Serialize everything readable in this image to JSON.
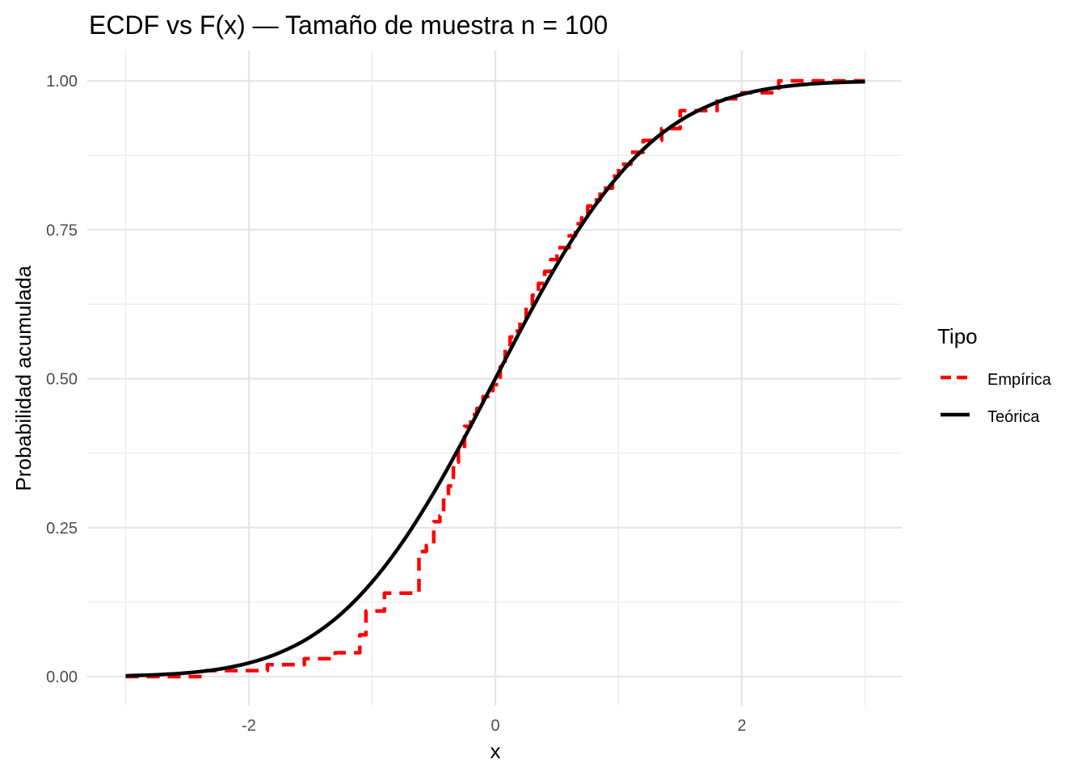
{
  "chart_data": {
    "type": "line",
    "title": "ECDF vs F(x) — Tamaño de muestra n = 100",
    "xlabel": "x",
    "ylabel": "Probabilidad acumulada",
    "xlim": [
      -3,
      3
    ],
    "ylim": [
      0,
      1
    ],
    "x_ticks": [
      -2,
      0,
      2
    ],
    "x_tick_labels": [
      "-2",
      "0",
      "2"
    ],
    "y_ticks": [
      0,
      0.25,
      0.5,
      0.75,
      1
    ],
    "y_tick_labels": [
      "0.00",
      "0.25",
      "0.50",
      "0.75",
      "1.00"
    ],
    "grid": true,
    "legend": {
      "title": "Tipo",
      "position": "right"
    },
    "series": [
      {
        "name": "Empírica",
        "color": "#ff0000",
        "style": "dashed",
        "x": [
          -3.0,
          -2.35,
          -2.0,
          -1.85,
          -1.55,
          -1.3,
          -1.1,
          -1.05,
          -0.9,
          -0.72,
          -0.62,
          -0.56,
          -0.5,
          -0.45,
          -0.42,
          -0.38,
          -0.34,
          -0.3,
          -0.25,
          -0.2,
          -0.15,
          -0.1,
          -0.06,
          -0.02,
          0.0,
          0.04,
          0.08,
          0.12,
          0.15,
          0.2,
          0.25,
          0.3,
          0.35,
          0.4,
          0.45,
          0.5,
          0.55,
          0.6,
          0.65,
          0.7,
          0.75,
          0.8,
          0.85,
          0.95,
          1.0,
          1.1,
          1.2,
          1.35,
          1.5,
          1.6,
          1.8,
          2.0,
          2.3,
          2.6,
          3.0
        ],
        "y": [
          0.0,
          0.01,
          0.01,
          0.02,
          0.03,
          0.04,
          0.07,
          0.11,
          0.14,
          0.14,
          0.21,
          0.22,
          0.26,
          0.27,
          0.3,
          0.32,
          0.36,
          0.38,
          0.42,
          0.44,
          0.45,
          0.47,
          0.48,
          0.49,
          0.49,
          0.52,
          0.55,
          0.57,
          0.58,
          0.6,
          0.62,
          0.64,
          0.66,
          0.68,
          0.7,
          0.72,
          0.72,
          0.74,
          0.76,
          0.77,
          0.79,
          0.8,
          0.82,
          0.84,
          0.86,
          0.88,
          0.9,
          0.92,
          0.95,
          0.95,
          0.97,
          0.98,
          1.0,
          1.0,
          1.0
        ]
      },
      {
        "name": "Teórica",
        "color": "#000000",
        "style": "solid",
        "x": [
          -3.0,
          -2.75,
          -2.5,
          -2.25,
          -2.0,
          -1.75,
          -1.5,
          -1.25,
          -1.0,
          -0.75,
          -0.5,
          -0.25,
          0.0,
          0.25,
          0.5,
          0.75,
          1.0,
          1.25,
          1.5,
          1.75,
          2.0,
          2.25,
          2.5,
          2.75,
          3.0
        ],
        "y": [
          0.0013,
          0.003,
          0.0062,
          0.0122,
          0.0228,
          0.0401,
          0.0668,
          0.1056,
          0.1587,
          0.2266,
          0.3085,
          0.4013,
          0.5,
          0.5987,
          0.6915,
          0.7734,
          0.8413,
          0.8944,
          0.9332,
          0.9599,
          0.9772,
          0.9878,
          0.9938,
          0.997,
          0.9987
        ]
      }
    ]
  }
}
